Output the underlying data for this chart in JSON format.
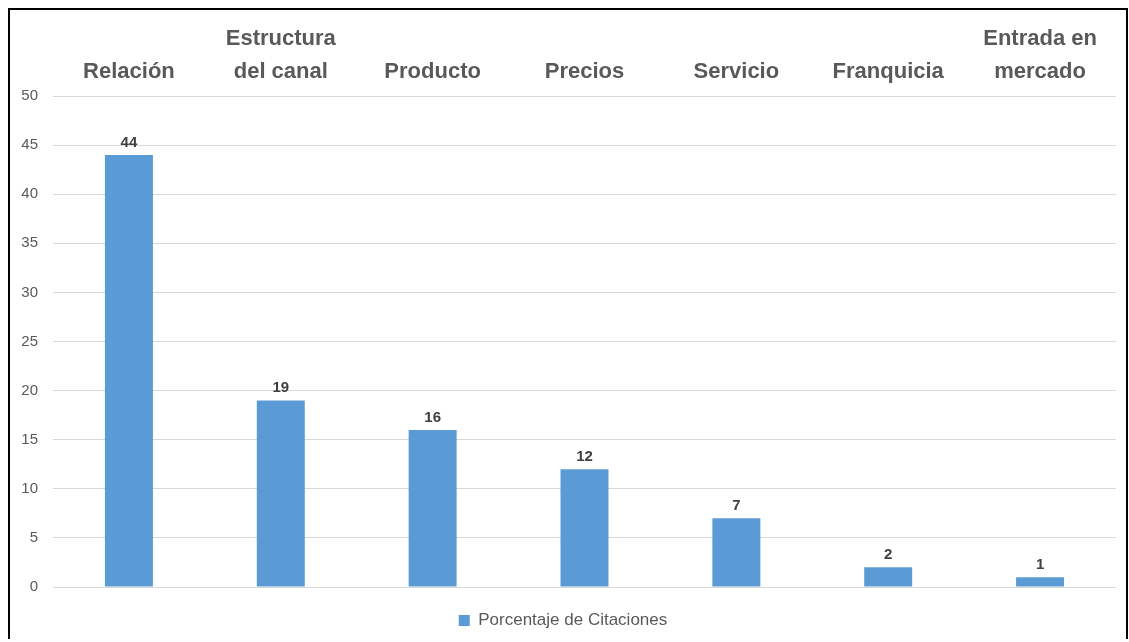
{
  "chart_data": {
    "type": "bar",
    "categories": [
      "Relación",
      "Estructura del canal",
      "Producto",
      "Precios",
      "Servicio",
      "Franquicia",
      "Entrada en mercado"
    ],
    "series": [
      {
        "name": "Porcentaje de Citaciones",
        "color": "#5b9bd5",
        "values": [
          44,
          19,
          16,
          12,
          7,
          2,
          1
        ]
      }
    ],
    "ylim": [
      0,
      50
    ],
    "yticks": [
      0,
      5,
      10,
      15,
      20,
      25,
      30,
      35,
      40,
      45,
      50
    ],
    "grid": "y",
    "legend": "bottom",
    "data_labels": true
  }
}
